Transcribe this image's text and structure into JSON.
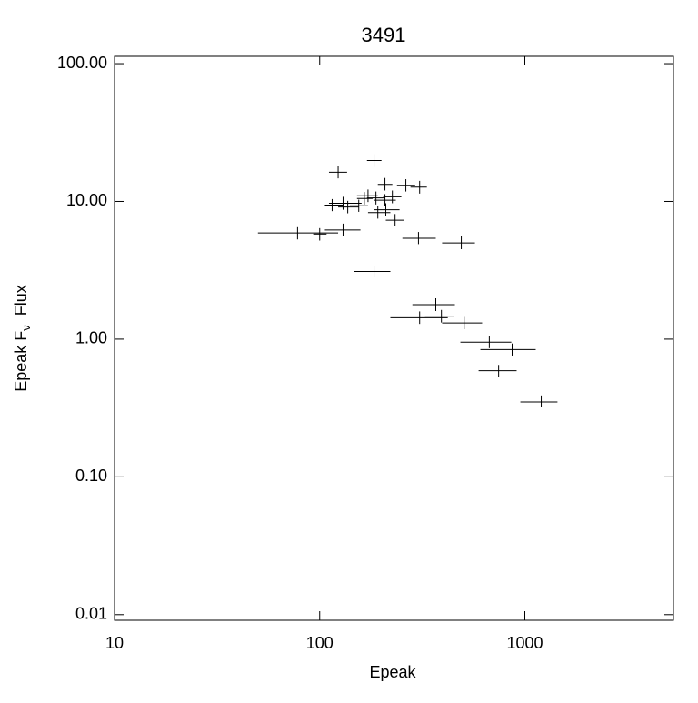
{
  "chart_data": {
    "type": "scatter",
    "title": "3491",
    "x_label": "Epeak",
    "y_label": {
      "main": "Epeak F",
      "sub": "ν",
      "tail": "Flux"
    },
    "x_log": true,
    "y_log": true,
    "color": "#000000",
    "xlim": [
      10,
      5300
    ],
    "ylim": [
      0.0091,
      113
    ],
    "xticks": [
      10,
      100,
      1000
    ],
    "yticks": [
      {
        "value": 0.01,
        "label": "0.01"
      },
      {
        "value": 0.1,
        "label": "0.10"
      },
      {
        "value": 1,
        "label": "1.00"
      },
      {
        "value": 10,
        "label": "10.00"
      },
      {
        "value": 100,
        "label": "100.00"
      }
    ],
    "series": [
      {
        "color": "#000000",
        "x": [
          123,
          184,
          208,
          263,
          307,
          172,
          226,
          188,
          165,
          208,
          130,
          115,
          137,
          155,
          210,
          192,
          233,
          303,
          490,
          130,
          78,
          100,
          184,
          368,
          307,
          392,
          506,
          671,
          867,
          745,
          1202
        ],
        "x_low": [
          111,
          170,
          192,
          238,
          277,
          152,
          204,
          170,
          152,
          184,
          111,
          106,
          123,
          140,
          184,
          172,
          210,
          253,
          395,
          106,
          50,
          93,
          147,
          283,
          221,
          326,
          395,
          485,
          607,
          595,
          951
        ],
        "x_high": [
          136,
          200,
          226,
          292,
          333,
          192,
          250,
          208,
          181,
          235,
          160,
          130,
          155,
          172,
          245,
          221,
          258,
          368,
          571,
          158,
          123,
          108,
          221,
          456,
          421,
          452,
          619,
          859,
          1130,
          912,
          1442
        ],
        "y": [
          16.3,
          19.8,
          13.3,
          13.1,
          12.7,
          11.0,
          10.8,
          10.6,
          10.5,
          10.2,
          9.7,
          9.4,
          9.1,
          9.3,
          8.7,
          8.3,
          7.3,
          5.4,
          5.0,
          6.2,
          5.9,
          5.8,
          3.1,
          1.78,
          1.43,
          1.47,
          1.31,
          0.95,
          0.84,
          0.59,
          0.35
        ],
        "y_low": [
          14.7,
          17.8,
          12.0,
          11.8,
          11.4,
          9.9,
          9.7,
          9.5,
          9.5,
          9.2,
          8.7,
          8.5,
          8.2,
          8.4,
          7.8,
          7.5,
          6.6,
          4.9,
          4.5,
          5.6,
          5.3,
          5.2,
          2.8,
          1.6,
          1.29,
          1.32,
          1.18,
          0.86,
          0.76,
          0.53,
          0.32
        ],
        "y_high": [
          18.1,
          22.0,
          14.8,
          14.5,
          14.1,
          12.2,
          12.0,
          11.8,
          11.7,
          11.3,
          10.8,
          10.4,
          10.1,
          10.3,
          9.7,
          9.2,
          8.1,
          6.0,
          5.6,
          6.9,
          6.5,
          6.4,
          3.4,
          1.98,
          1.59,
          1.63,
          1.45,
          1.05,
          0.93,
          0.65,
          0.39
        ]
      }
    ]
  }
}
